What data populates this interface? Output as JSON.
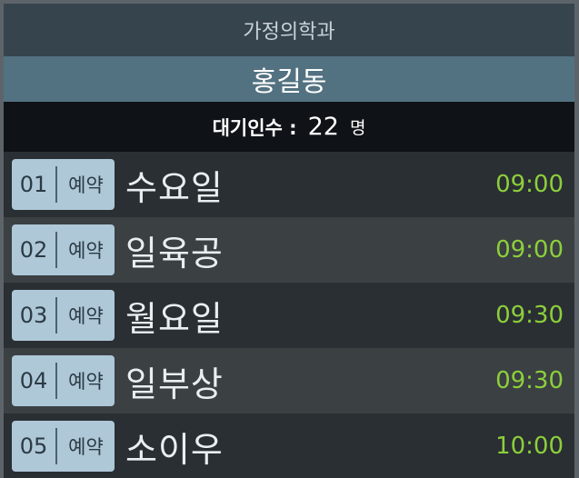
{
  "department": "가정의학과",
  "doctor": "홍길동",
  "waiting": {
    "label": "대기인수 :",
    "count": "22",
    "unit": "명"
  },
  "colors": {
    "accent_time": "#8ccf3a",
    "badge_bg": "#aec8d8"
  },
  "queue": [
    {
      "num": "01",
      "tag": "예약",
      "name": "수요일",
      "time": "09:00"
    },
    {
      "num": "02",
      "tag": "예약",
      "name": "일육공",
      "time": "09:00"
    },
    {
      "num": "03",
      "tag": "예약",
      "name": "월요일",
      "time": "09:30"
    },
    {
      "num": "04",
      "tag": "예약",
      "name": "일부상",
      "time": "09:30"
    },
    {
      "num": "05",
      "tag": "예약",
      "name": "소이우",
      "time": "10:00"
    }
  ]
}
